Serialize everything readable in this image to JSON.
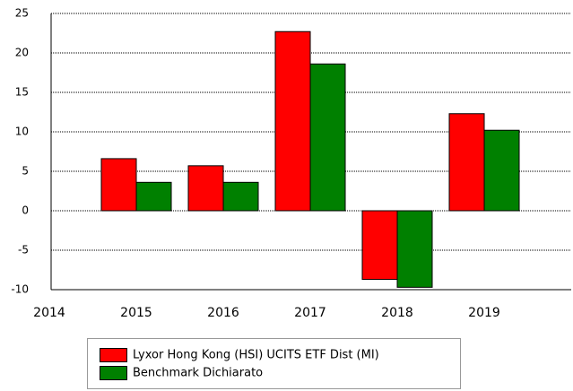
{
  "chart_data": {
    "type": "bar",
    "categories": [
      "2014",
      "2015",
      "2016",
      "2017",
      "2018",
      "2019"
    ],
    "series": [
      {
        "name": "Lyxor Hong Kong (HSI) UCITS ETF Dist (MI)",
        "color": "#ff0000",
        "values": [
          null,
          6.6,
          5.7,
          22.7,
          -8.7,
          12.3
        ]
      },
      {
        "name": "Benchmark Dichiarato",
        "color": "#008000",
        "values": [
          null,
          3.6,
          3.6,
          18.6,
          -9.7,
          10.2
        ]
      }
    ],
    "ylim": [
      -10,
      25
    ],
    "yticks": [
      -10,
      -5,
      0,
      5,
      10,
      15,
      20,
      25
    ],
    "grid": true,
    "legend": "bottom"
  }
}
